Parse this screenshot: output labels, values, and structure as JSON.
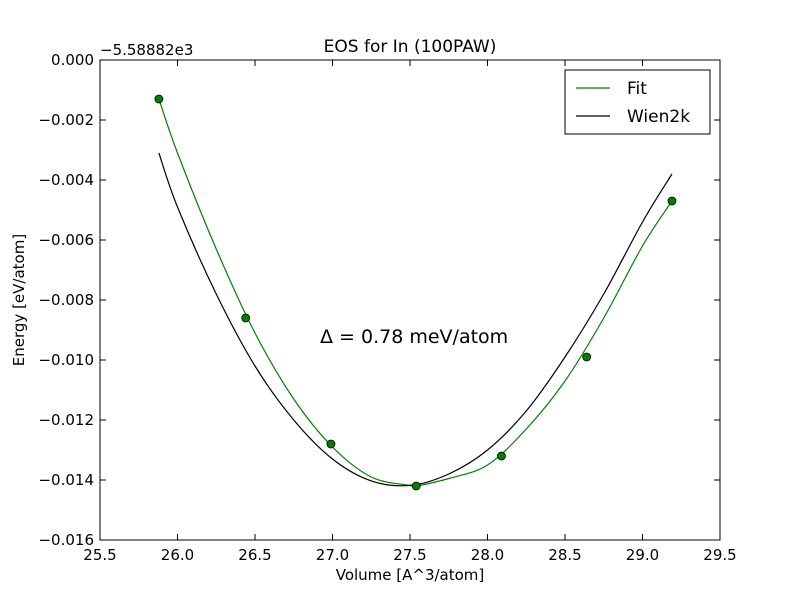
{
  "chart_data": {
    "type": "line",
    "title": "EOS for In (100PAW)",
    "xlabel": "Volume [A^3/atom]",
    "ylabel": "Energy [eV/atom]",
    "y_offset_label": "−5.58882e3",
    "annotation": "Δ = 0.78 meV/atom",
    "xlim": [
      25.5,
      29.5
    ],
    "ylim": [
      -0.016,
      0.0
    ],
    "x_ticks": [
      25.5,
      26.0,
      26.5,
      27.0,
      27.5,
      28.0,
      28.5,
      29.0,
      29.5
    ],
    "x_tick_labels": [
      "25.5",
      "26.0",
      "26.5",
      "27.0",
      "27.5",
      "28.0",
      "28.5",
      "29.0",
      "29.5"
    ],
    "y_ticks": [
      0.0,
      -0.002,
      -0.004,
      -0.006,
      -0.008,
      -0.01,
      -0.012,
      -0.014,
      -0.016
    ],
    "y_tick_labels": [
      "0.000",
      "−0.002",
      "−0.004",
      "−0.006",
      "−0.008",
      "−0.010",
      "−0.012",
      "−0.014",
      "−0.016"
    ],
    "grid": false,
    "legend_position": "top-right",
    "legend": [
      "Fit",
      "Wien2k"
    ],
    "series": [
      {
        "name": "Fit",
        "kind": "line",
        "color": "#008000",
        "x": [
          25.88,
          26.0,
          26.25,
          26.5,
          26.75,
          27.0,
          27.25,
          27.5,
          27.54,
          27.75,
          28.0,
          28.25,
          28.5,
          28.75,
          29.0,
          29.19
        ],
        "y": [
          -0.0013,
          -0.0031,
          -0.0063,
          -0.0091,
          -0.0113,
          -0.0129,
          -0.0139,
          -0.01418,
          -0.0142,
          -0.01395,
          -0.0135,
          -0.0123,
          -0.0107,
          -0.0086,
          -0.0062,
          -0.0047
        ]
      },
      {
        "name": "Wien2k",
        "kind": "line",
        "color": "#000000",
        "x": [
          25.88,
          26.0,
          26.25,
          26.5,
          26.75,
          27.0,
          27.25,
          27.5,
          27.75,
          28.0,
          28.25,
          28.5,
          28.75,
          29.0,
          29.19
        ],
        "y": [
          -0.0031,
          -0.0049,
          -0.0078,
          -0.0102,
          -0.012,
          -0.0133,
          -0.01403,
          -0.01418,
          -0.0138,
          -0.013,
          -0.0117,
          -0.0099,
          -0.0078,
          -0.0054,
          -0.0038
        ]
      },
      {
        "name": "",
        "kind": "points",
        "color": "#008000",
        "x": [
          25.88,
          26.44,
          26.99,
          27.54,
          28.09,
          28.64,
          29.19
        ],
        "y": [
          -0.0013,
          -0.0086,
          -0.0128,
          -0.0142,
          -0.0132,
          -0.0099,
          -0.0047
        ]
      }
    ]
  }
}
